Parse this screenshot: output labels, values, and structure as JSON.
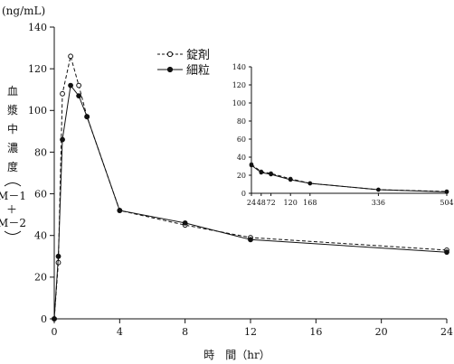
{
  "chart_data": [
    {
      "type": "line",
      "yunit": "(ng/mL)",
      "ylabel_lines": [
        "血",
        "漿",
        "中",
        "濃",
        "度"
      ],
      "ylabel_bracket": [
        "M－1",
        "＋",
        "M－2"
      ],
      "xlabel": "時　間（hr）",
      "xlim": [
        0,
        24
      ],
      "ylim": [
        0,
        140
      ],
      "xticks": [
        "0",
        "4",
        "8",
        "12",
        "16",
        "20",
        "24"
      ],
      "yticks": [
        "0",
        "20",
        "40",
        "60",
        "80",
        "100",
        "120",
        "140"
      ],
      "legend": [
        {
          "label": "錠剤",
          "style": "dashed-open"
        },
        {
          "label": "細粒",
          "style": "solid-filled"
        }
      ],
      "series": [
        {
          "name": "錠剤",
          "style": "dashed-open",
          "x": [
            0,
            0.25,
            0.5,
            1,
            1.5,
            2,
            4,
            8,
            12,
            24
          ],
          "y": [
            0,
            27,
            108,
            126,
            112,
            97,
            52,
            45,
            39,
            33
          ]
        },
        {
          "name": "細粒",
          "style": "solid-filled",
          "x": [
            0,
            0.25,
            0.5,
            1,
            1.5,
            2,
            4,
            8,
            12,
            24
          ],
          "y": [
            0,
            30,
            86,
            112,
            107,
            97,
            52,
            46,
            38,
            32
          ]
        }
      ]
    },
    {
      "type": "line",
      "role": "inset",
      "xlim": [
        24,
        504
      ],
      "ylim": [
        0,
        140
      ],
      "xticks": [
        "24",
        "48",
        "72",
        "120",
        "168",
        "336",
        "504"
      ],
      "yticks": [
        "0",
        "20",
        "40",
        "60",
        "80",
        "100",
        "120",
        "140"
      ],
      "series": [
        {
          "name": "錠剤",
          "style": "dashed-open",
          "x": [
            24,
            48,
            72,
            120,
            168,
            336,
            504
          ],
          "y": [
            32,
            24,
            22,
            16,
            11,
            4,
            2
          ]
        },
        {
          "name": "細粒",
          "style": "solid-filled",
          "x": [
            24,
            48,
            72,
            120,
            168,
            336,
            504
          ],
          "y": [
            31,
            23,
            21,
            15,
            11,
            4,
            1.5
          ]
        }
      ]
    }
  ]
}
